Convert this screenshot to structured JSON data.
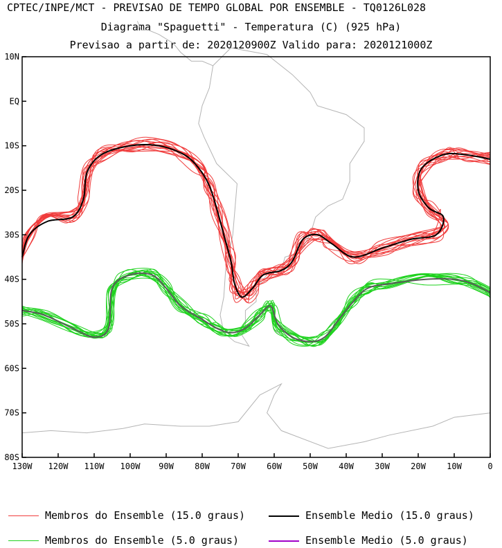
{
  "titles": {
    "line1": "CPTEC/INPE/MCT - PREVISAO DE TEMPO GLOBAL POR ENSEMBLE - TQ0126L028",
    "line2": "Diagrama \"Spaguetti\" - Temperatura (C) (925 hPa)",
    "line3": "Previsao a partir de: 2020120900Z  Valido para: 2020121000Z"
  },
  "axes": {
    "lat_labels": [
      "10N",
      "EQ",
      "10S",
      "20S",
      "30S",
      "40S",
      "50S",
      "60S",
      "70S",
      "80S"
    ],
    "lon_labels": [
      "130W",
      "120W",
      "110W",
      "100W",
      "90W",
      "80W",
      "70W",
      "60W",
      "50W",
      "40W",
      "30W",
      "20W",
      "10W",
      "0"
    ]
  },
  "legend": {
    "red_members": "Membros do Ensemble (15.0 graus)",
    "black_mean": "Ensemble Medio (15.0 graus)",
    "green_members": "Membros do Ensemble (5.0 graus)",
    "purple_mean": "Ensemble Medio (5.0 graus)"
  },
  "colors": {
    "red": "#f03c3c",
    "black": "#000000",
    "green": "#1ed21e",
    "purple": "#a000c8",
    "coast": "#b4b4b4"
  },
  "map_extent": {
    "lon": [
      -130,
      0
    ],
    "lat": [
      -80,
      10
    ]
  },
  "isotherms": {
    "red_15": [
      [
        -130,
        -35
      ],
      [
        -128,
        -30
      ],
      [
        -123,
        -27
      ],
      [
        -116,
        -26
      ],
      [
        -113,
        -22
      ],
      [
        -112,
        -16
      ],
      [
        -108,
        -12
      ],
      [
        -100,
        -10
      ],
      [
        -92,
        -10
      ],
      [
        -85,
        -12
      ],
      [
        -81,
        -15
      ],
      [
        -78,
        -19
      ],
      [
        -76,
        -24
      ],
      [
        -74,
        -30
      ],
      [
        -72,
        -36
      ],
      [
        -71,
        -41
      ],
      [
        -69,
        -44
      ],
      [
        -66,
        -42
      ],
      [
        -63,
        -39
      ],
      [
        -58,
        -38
      ],
      [
        -55,
        -36
      ],
      [
        -52,
        -31
      ],
      [
        -48,
        -30
      ],
      [
        -44,
        -32
      ],
      [
        -38,
        -35
      ],
      [
        -30,
        -33
      ],
      [
        -22,
        -31
      ],
      [
        -15,
        -30
      ],
      [
        -13,
        -26
      ],
      [
        -17,
        -24
      ],
      [
        -20,
        -20
      ],
      [
        -19,
        -15
      ],
      [
        -13,
        -12
      ],
      [
        -7,
        -12
      ],
      [
        0,
        -13
      ]
    ],
    "green_5": [
      [
        -130,
        -47
      ],
      [
        -124,
        -48
      ],
      [
        -116,
        -51
      ],
      [
        -110,
        -53
      ],
      [
        -106,
        -51
      ],
      [
        -105,
        -42
      ],
      [
        -100,
        -39
      ],
      [
        -94,
        -39
      ],
      [
        -90,
        -42
      ],
      [
        -86,
        -46
      ],
      [
        -80,
        -49
      ],
      [
        -76,
        -51
      ],
      [
        -72,
        -52
      ],
      [
        -68,
        -51
      ],
      [
        -64,
        -48
      ],
      [
        -61,
        -46
      ],
      [
        -59,
        -50
      ],
      [
        -55,
        -53
      ],
      [
        -50,
        -54
      ],
      [
        -46,
        -53
      ],
      [
        -42,
        -49
      ],
      [
        -38,
        -45
      ],
      [
        -34,
        -42
      ],
      [
        -28,
        -41
      ],
      [
        -18,
        -40
      ],
      [
        -10,
        -40
      ],
      [
        -5,
        -41
      ],
      [
        0,
        -43
      ]
    ]
  }
}
